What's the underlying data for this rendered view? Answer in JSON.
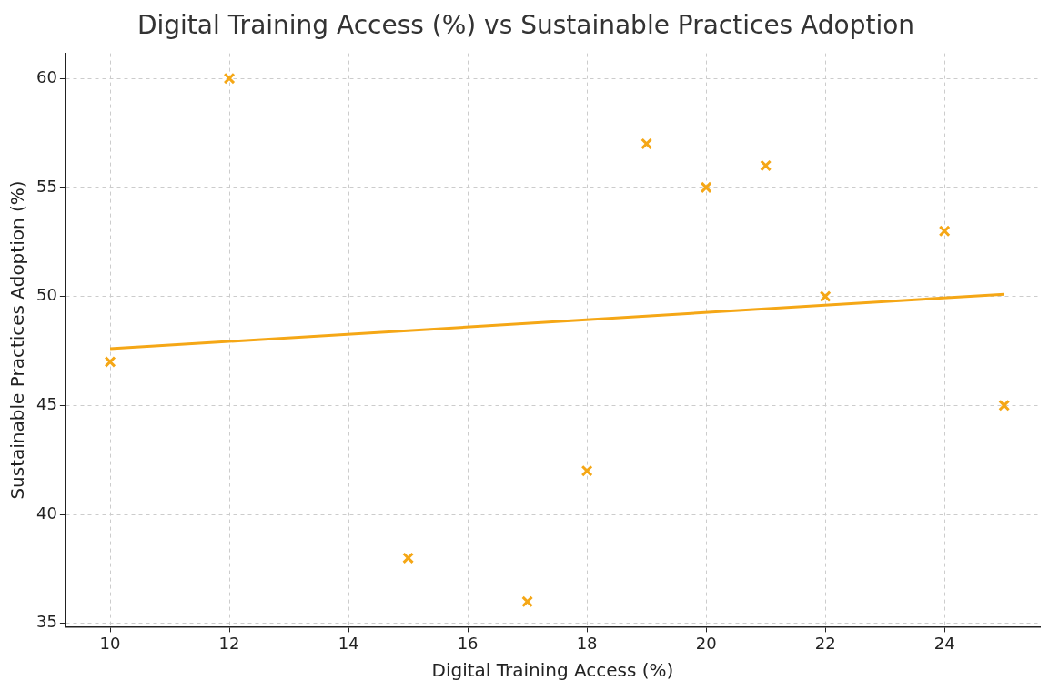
{
  "chart_data": {
    "type": "scatter",
    "title": "Digital Training Access (%) vs Sustainable Practices Adoption",
    "xlabel": "Digital Training Access (%)",
    "ylabel": "Sustainable Practices Adoption (%)",
    "xlim": [
      9.25,
      25.6
    ],
    "xticks": [
      10,
      12,
      14,
      16,
      18,
      20,
      22,
      24
    ],
    "ylim": [
      34.85,
      61.15
    ],
    "yticks": [
      35,
      40,
      45,
      50,
      55,
      60
    ],
    "grid": true,
    "marker": "cross",
    "series": [
      {
        "type": "scatter",
        "color": "#f5a716",
        "x": [
          10,
          12,
          15,
          17,
          18,
          19,
          20,
          21,
          22,
          24,
          25
        ],
        "values": [
          47,
          60,
          38,
          36,
          42,
          57,
          55,
          56,
          50,
          53,
          45
        ]
      },
      {
        "type": "line",
        "color": "#f5a716",
        "marker": "none",
        "line_style": "solid",
        "x": [
          10,
          25
        ],
        "values": [
          47.6,
          50.1
        ]
      }
    ]
  }
}
